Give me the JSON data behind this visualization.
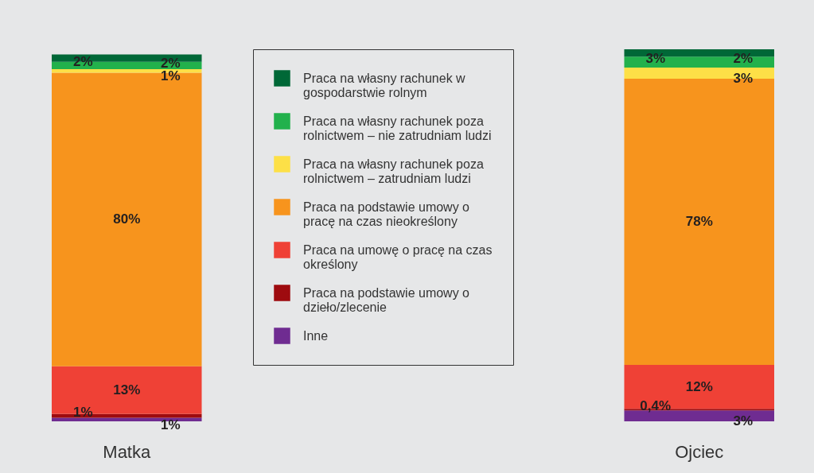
{
  "chart_data": {
    "type": "bar",
    "stacked": true,
    "categories": [
      "Matka",
      "Ojciec"
    ],
    "tick_labels": "x",
    "legend": "top",
    "series": [
      {
        "name": "Inne",
        "color": "#6f2c91",
        "values": [
          1,
          3
        ],
        "value_labels": [
          "1%",
          "3%"
        ]
      },
      {
        "name": "Praca na podstawie umowy o dzieło/zlecenie",
        "color": "#9e0b0f",
        "values": [
          1,
          0.4
        ],
        "value_labels": [
          "1%",
          "0,4%"
        ]
      },
      {
        "name": "Praca na umowę o pracę na czas określony",
        "color": "#ef4136",
        "values": [
          13,
          12
        ],
        "value_labels": [
          "13%",
          "12%"
        ]
      },
      {
        "name": "Praca na podstawie umowy o pracę na czas nieokreślony",
        "color": "#f7941d",
        "values": [
          80,
          78
        ],
        "value_labels": [
          "80%",
          "78%"
        ]
      },
      {
        "name": "Praca na własny rachunek poza rolnictwem – zatrudniam ludzi",
        "color": "#fde047",
        "values": [
          1,
          3
        ],
        "value_labels": [
          "1%",
          "3%"
        ]
      },
      {
        "name": "Praca na własny rachunek poza rolnictwem – nie zatrudniam ludzi",
        "color": "#22b14c",
        "values": [
          2,
          3
        ],
        "value_labels": [
          "2%",
          "3%"
        ]
      },
      {
        "name": "Praca na własny rachunek w gospodarstwie rolnym",
        "color": "#006837",
        "values": [
          2,
          2
        ],
        "value_labels": [
          "2%",
          "2%"
        ]
      }
    ]
  }
}
